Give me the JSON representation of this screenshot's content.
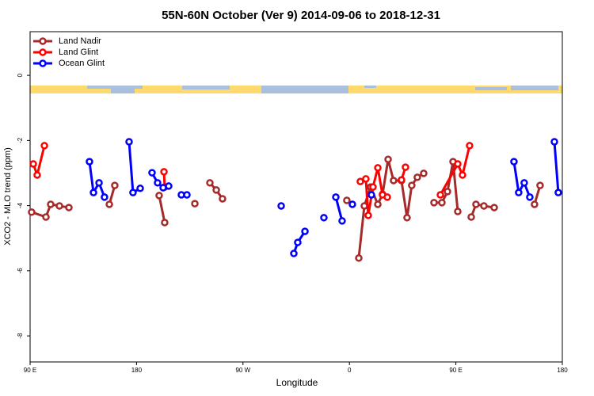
{
  "chart_data": {
    "type": "line",
    "title": "55N-60N October (Ver 9)   2014-09-06 to 2018-12-31",
    "x_label": "Longitude",
    "y_label": "XCO2 - MLO trend (ppm)",
    "xlim": [
      90,
      540
    ],
    "xticks": [
      {
        "value": 90,
        "label": "90 E"
      },
      {
        "value": 180,
        "label": "180"
      },
      {
        "value": 270,
        "label": "90 W"
      },
      {
        "value": 360,
        "label": "0"
      },
      {
        "value": 450,
        "label": "90 E"
      },
      {
        "value": 540,
        "label": "180"
      }
    ],
    "ylim": [
      -8.8,
      1.34
    ],
    "yticks": [
      0,
      -2,
      -4,
      -6,
      -8
    ],
    "legend": "top-left",
    "series": [
      {
        "name": "Land Nadir",
        "color": "#a52a2a",
        "x": [
          91.3,
          103.4,
          107.4,
          114.8,
          122.8,
          null,
          157.0,
          161.6,
          null,
          199.1,
          203.8,
          null,
          229.3,
          null,
          242.0,
          247.4,
          252.7,
          null,
          357.8,
          null,
          367.9,
          372.6,
          377.9,
          384.0,
          388.0,
          392.7,
          397.3,
          404.0,
          408.7,
          412.7,
          417.4,
          422.8,
          null,
          431.5,
          438.2,
          442.9,
          447.6,
          451.6,
          null,
          463.0,
          467.0,
          473.7,
          482.4,
          null,
          516.5,
          521.2
        ],
        "values": [
          -4.2,
          -4.35,
          -3.96,
          -4.01,
          -4.06,
          null,
          -3.96,
          -3.38,
          null,
          -3.69,
          -4.52,
          null,
          -3.94,
          null,
          -3.3,
          -3.52,
          -3.79,
          null,
          -3.84,
          null,
          -5.61,
          -4.01,
          -3.43,
          -3.96,
          -3.65,
          -2.58,
          -3.23,
          -3.23,
          -4.37,
          -3.38,
          -3.13,
          -3.01,
          null,
          -3.91,
          -3.91,
          -3.57,
          -2.65,
          -4.18,
          null,
          -4.35,
          -3.96,
          -4.01,
          -4.06,
          null,
          -3.96,
          -3.38
        ]
      },
      {
        "name": "Land Glint",
        "color": "#ff0000",
        "x": [
          92.7,
          96.0,
          102.1,
          null,
          203.2,
          203.8,
          null,
          369.2,
          373.9,
          375.9,
          379.9,
          384.0,
          388.0,
          392.0,
          null,
          404.0,
          407.4,
          null,
          436.9,
          451.6,
          455.6,
          461.6
        ],
        "values": [
          -2.72,
          -3.06,
          -2.16,
          null,
          -2.96,
          -3.43,
          null,
          -3.26,
          -3.18,
          -4.3,
          -3.43,
          -2.84,
          -3.67,
          -3.74,
          null,
          -3.21,
          -2.82,
          null,
          -3.67,
          -2.72,
          -3.06,
          -2.16
        ]
      },
      {
        "name": "Ocean Glint",
        "color": "#0000ff",
        "x": [
          140.2,
          143.6,
          148.3,
          152.9,
          null,
          173.7,
          177.0,
          183.1,
          null,
          193.1,
          197.8,
          202.5,
          207.2,
          null,
          217.9,
          222.6,
          null,
          302.3,
          null,
          313.0,
          316.3,
          322.4,
          null,
          338.4,
          null,
          348.5,
          353.8,
          null,
          362.5,
          null,
          378.6,
          null,
          499.1,
          503.1,
          507.8,
          512.5,
          null,
          533.3,
          536.6
        ],
        "values": [
          -2.65,
          -3.6,
          -3.3,
          -3.74,
          null,
          -2.04,
          -3.6,
          -3.47,
          null,
          -2.99,
          -3.3,
          -3.45,
          -3.4,
          null,
          -3.67,
          -3.67,
          null,
          -4.01,
          null,
          -5.47,
          -5.13,
          -4.79,
          null,
          -4.37,
          null,
          -3.74,
          -4.47,
          null,
          -3.96,
          null,
          -3.67,
          null,
          -2.65,
          -3.6,
          -3.3,
          -3.74,
          null,
          -2.04,
          -3.6
        ]
      }
    ]
  }
}
